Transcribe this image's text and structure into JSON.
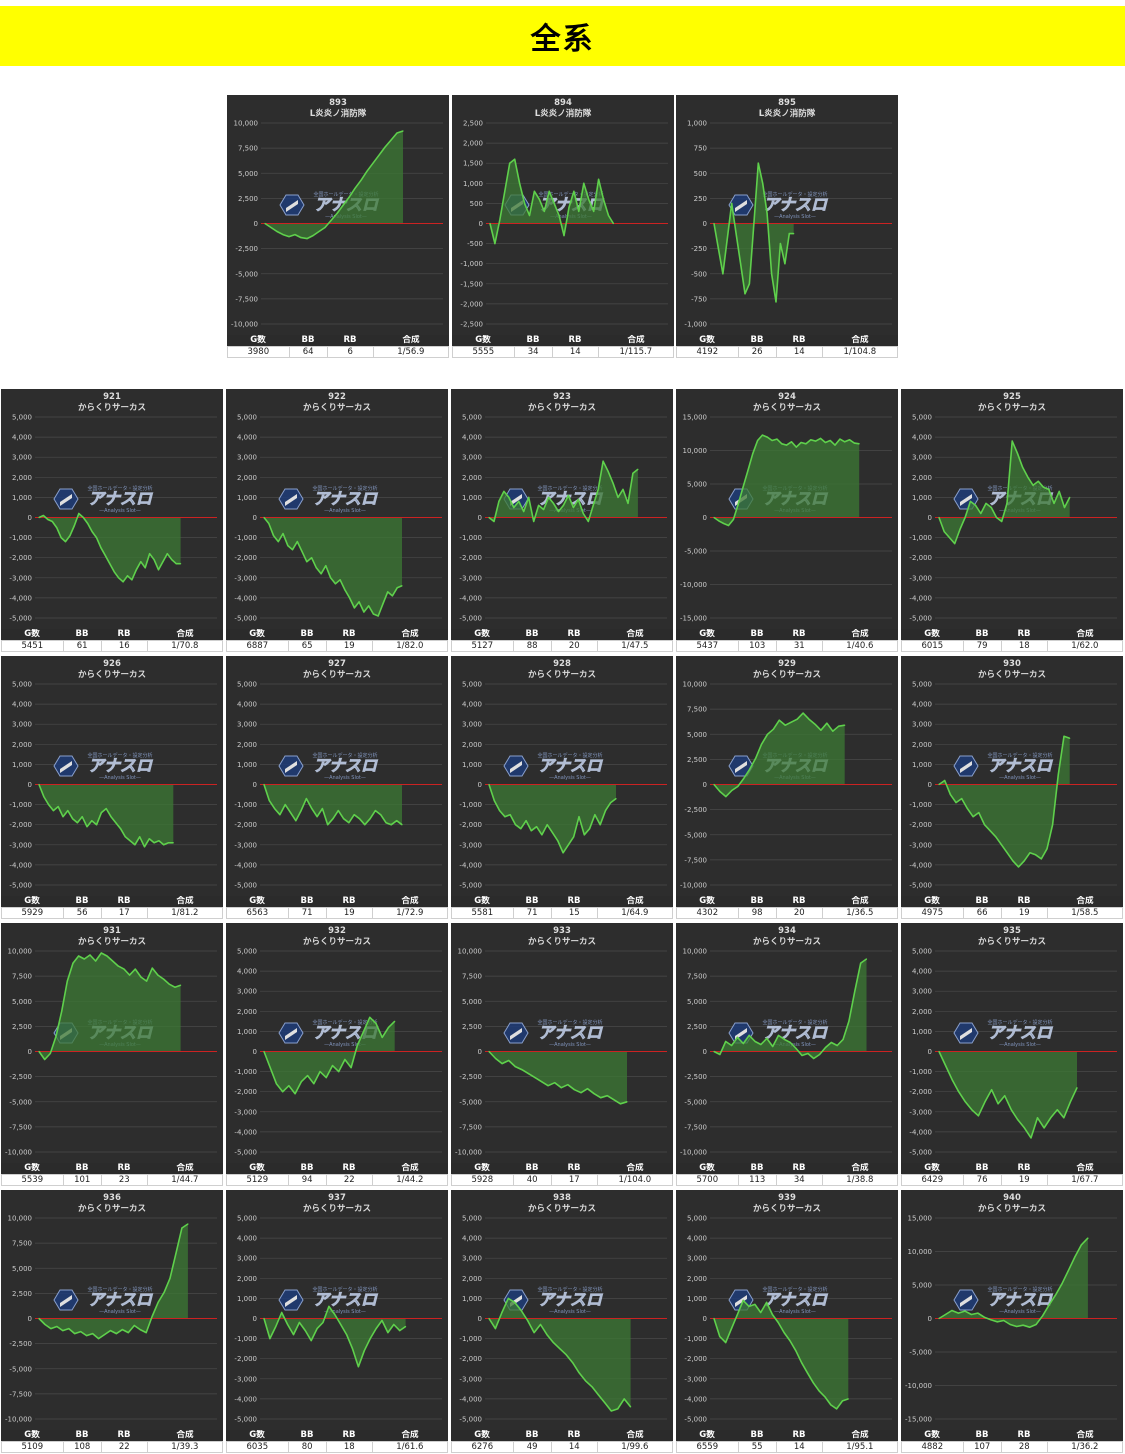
{
  "header": {
    "title": "全系"
  },
  "stat_labels": {
    "games": "G数",
    "bb": "BB",
    "rb": "RB",
    "ratio": "合成"
  },
  "watermark": {
    "main": "アナスロ",
    "sub": "—Analysis Slot—",
    "top": "全国ホールデータ・設定分析"
  },
  "colors": {
    "bg": "#2d2d2d",
    "line": "#5fd04c",
    "fill": "#3c7a34",
    "zero": "#cc2222",
    "banner": "#ffff00"
  },
  "chart_data": [
    {
      "type": "area",
      "id": "893",
      "machine": "L炎炎ノ消防隊",
      "ylim": [
        -10000,
        10000
      ],
      "yticks": [
        10000,
        7500,
        5000,
        2500,
        0,
        -2500,
        -5000,
        -7500,
        -10000
      ],
      "x_end": 0.78,
      "values": [
        0,
        -400,
        -800,
        -1100,
        -1300,
        -1100,
        -1400,
        -1500,
        -1200,
        -800,
        -400,
        300,
        1000,
        1800,
        2600,
        3500,
        4300,
        5200,
        6000,
        6800,
        7600,
        8300,
        9000,
        9200
      ],
      "stats": {
        "games": "3980",
        "bb": "64",
        "rb": "6",
        "ratio": "1/56.9"
      }
    },
    {
      "type": "area",
      "id": "894",
      "machine": "L炎炎ノ消防隊",
      "ylim": [
        -2500,
        2500
      ],
      "yticks": [
        2500,
        2000,
        1500,
        1000,
        500,
        0,
        -500,
        -1000,
        -1500,
        -2000,
        -2500
      ],
      "x_end": 0.7,
      "values": [
        0,
        -500,
        100,
        800,
        1500,
        1600,
        1000,
        500,
        200,
        800,
        600,
        300,
        800,
        500,
        200,
        -300,
        400,
        800,
        300,
        1000,
        600,
        300,
        1100,
        600,
        200,
        0
      ],
      "stats": {
        "games": "5555",
        "bb": "34",
        "rb": "14",
        "ratio": "1/115.7"
      }
    },
    {
      "type": "area",
      "id": "895",
      "machine": "L炎炎ノ消防隊",
      "ylim": [
        -1000,
        1000
      ],
      "yticks": [
        1000,
        750,
        500,
        250,
        0,
        -250,
        -500,
        -750,
        -1000
      ],
      "x_end": 0.46,
      "values": [
        0,
        -250,
        -500,
        -150,
        200,
        -100,
        -400,
        -700,
        -600,
        0,
        600,
        400,
        100,
        -500,
        -780,
        -200,
        -400,
        -100,
        -100
      ],
      "stats": {
        "games": "4192",
        "bb": "26",
        "rb": "14",
        "ratio": "1/104.8"
      }
    },
    {
      "type": "area",
      "id": "921",
      "machine": "からくりサーカス",
      "ylim": [
        -5000,
        5000
      ],
      "yticks": [
        5000,
        4000,
        3000,
        2000,
        1000,
        0,
        -1000,
        -2000,
        -3000,
        -4000,
        -5000
      ],
      "x_end": 0.8,
      "values": [
        0,
        100,
        -100,
        -200,
        -500,
        -1000,
        -1200,
        -900,
        -400,
        200,
        0,
        -300,
        -700,
        -1000,
        -1500,
        -1900,
        -2300,
        -2700,
        -3000,
        -3200,
        -2900,
        -3100,
        -2600,
        -2200,
        -2500,
        -1800,
        -2100,
        -2600,
        -2200,
        -1800,
        -2100,
        -2300,
        -2300
      ],
      "stats": {
        "games": "5451",
        "bb": "61",
        "rb": "16",
        "ratio": "1/70.8"
      }
    },
    {
      "type": "area",
      "id": "922",
      "machine": "からくりサーカス",
      "ylim": [
        -5000,
        5000
      ],
      "yticks": [
        5000,
        4000,
        3000,
        2000,
        1000,
        0,
        -1000,
        -2000,
        -3000,
        -4000,
        -5000
      ],
      "x_end": 0.78,
      "values": [
        0,
        -300,
        -900,
        -1200,
        -800,
        -1400,
        -1600,
        -1200,
        -1700,
        -2200,
        -2000,
        -2500,
        -2800,
        -2400,
        -3000,
        -3300,
        -3100,
        -3600,
        -4000,
        -4500,
        -4200,
        -4700,
        -4400,
        -4800,
        -4900,
        -4300,
        -3700,
        -3900,
        -3500,
        -3400
      ],
      "stats": {
        "games": "6887",
        "bb": "65",
        "rb": "19",
        "ratio": "1/82.0"
      }
    },
    {
      "type": "area",
      "id": "923",
      "machine": "からくりサーカス",
      "ylim": [
        -5000,
        5000
      ],
      "yticks": [
        5000,
        4000,
        3000,
        2000,
        1000,
        0,
        -1000,
        -2000,
        -3000,
        -4000,
        -5000
      ],
      "x_end": 0.84,
      "values": [
        0,
        -200,
        800,
        1300,
        1000,
        500,
        800,
        300,
        1000,
        -200,
        600,
        400,
        1000,
        700,
        300,
        600,
        1100,
        500,
        900,
        200,
        -200,
        600,
        1400,
        2800,
        2300,
        1700,
        1000,
        1400,
        700,
        2200,
        2400
      ],
      "stats": {
        "games": "5127",
        "bb": "88",
        "rb": "20",
        "ratio": "1/47.5"
      }
    },
    {
      "type": "area",
      "id": "924",
      "machine": "からくりサーカス",
      "ylim": [
        -15000,
        15000
      ],
      "yticks": [
        15000,
        10000,
        5000,
        0,
        -5000,
        -10000,
        -15000
      ],
      "x_end": 0.82,
      "values": [
        0,
        -500,
        -900,
        -1200,
        -300,
        2000,
        4500,
        7000,
        9500,
        11500,
        12300,
        12000,
        11500,
        11700,
        11000,
        10800,
        11300,
        10500,
        11200,
        11000,
        11600,
        11400,
        11800,
        11200,
        11500,
        10800,
        11700,
        11300,
        11600,
        11100,
        11000
      ],
      "stats": {
        "games": "5437",
        "bb": "103",
        "rb": "31",
        "ratio": "1/40.6"
      }
    },
    {
      "type": "area",
      "id": "925",
      "machine": "からくりサーカス",
      "ylim": [
        -5000,
        5000
      ],
      "yticks": [
        5000,
        4000,
        3000,
        2000,
        1000,
        0,
        -1000,
        -2000,
        -3000,
        -4000,
        -5000
      ],
      "x_end": 0.74,
      "values": [
        0,
        -700,
        -1000,
        -1300,
        -600,
        0,
        800,
        600,
        200,
        700,
        500,
        0,
        -200,
        700,
        3800,
        3200,
        2500,
        2000,
        1600,
        1800,
        1500,
        1400,
        700,
        1300,
        500,
        1000
      ],
      "stats": {
        "games": "6015",
        "bb": "79",
        "rb": "18",
        "ratio": "1/62.0"
      }
    },
    {
      "type": "area",
      "id": "926",
      "machine": "からくりサーカス",
      "ylim": [
        -5000,
        5000
      ],
      "yticks": [
        5000,
        4000,
        3000,
        2000,
        1000,
        0,
        -1000,
        -2000,
        -3000,
        -4000,
        -5000
      ],
      "x_end": 0.76,
      "values": [
        0,
        -600,
        -1000,
        -1300,
        -1100,
        -1600,
        -1300,
        -1700,
        -1900,
        -1600,
        -2100,
        -1800,
        -2000,
        -1400,
        -1200,
        -1600,
        -1900,
        -2200,
        -2600,
        -2800,
        -3000,
        -2600,
        -3100,
        -2700,
        -2900,
        -2800,
        -3000,
        -2900,
        -2900
      ],
      "stats": {
        "games": "5929",
        "bb": "56",
        "rb": "17",
        "ratio": "1/81.2"
      }
    },
    {
      "type": "area",
      "id": "927",
      "machine": "からくりサーカス",
      "ylim": [
        -5000,
        5000
      ],
      "yticks": [
        5000,
        4000,
        3000,
        2000,
        1000,
        0,
        -1000,
        -2000,
        -3000,
        -4000,
        -5000
      ],
      "x_end": 0.78,
      "values": [
        0,
        -800,
        -1200,
        -1500,
        -1000,
        -1400,
        -1800,
        -1300,
        -700,
        -1200,
        -1600,
        -1200,
        -2000,
        -1700,
        -1300,
        -1700,
        -1900,
        -1500,
        -1700,
        -2000,
        -1700,
        -1300,
        -1500,
        -1900,
        -2000,
        -1800,
        -2000
      ],
      "stats": {
        "games": "6563",
        "bb": "71",
        "rb": "19",
        "ratio": "1/72.9"
      }
    },
    {
      "type": "area",
      "id": "928",
      "machine": "からくりサーカス",
      "ylim": [
        -5000,
        5000
      ],
      "yticks": [
        5000,
        4000,
        3000,
        2000,
        1000,
        0,
        -1000,
        -2000,
        -3000,
        -4000,
        -5000
      ],
      "x_end": 0.72,
      "values": [
        0,
        -800,
        -1300,
        -1600,
        -1500,
        -2000,
        -2200,
        -1800,
        -2300,
        -2100,
        -2500,
        -2000,
        -2400,
        -2800,
        -3400,
        -3000,
        -2600,
        -1600,
        -2500,
        -2200,
        -1500,
        -2000,
        -1300,
        -900,
        -700
      ],
      "stats": {
        "games": "5581",
        "bb": "71",
        "rb": "15",
        "ratio": "1/64.9"
      }
    },
    {
      "type": "area",
      "id": "929",
      "machine": "からくりサーカス",
      "ylim": [
        -10000,
        10000
      ],
      "yticks": [
        10000,
        7500,
        5000,
        2500,
        0,
        -2500,
        -5000,
        -7500,
        -10000
      ],
      "x_end": 0.74,
      "values": [
        0,
        -700,
        -1200,
        -600,
        -200,
        600,
        1500,
        2600,
        4000,
        5000,
        5500,
        6400,
        5900,
        6200,
        6500,
        7100,
        6500,
        6000,
        5400,
        6100,
        5300,
        5800,
        5900
      ],
      "stats": {
        "games": "4302",
        "bb": "98",
        "rb": "20",
        "ratio": "1/36.5"
      }
    },
    {
      "type": "area",
      "id": "930",
      "machine": "からくりサーカス",
      "ylim": [
        -5000,
        5000
      ],
      "yticks": [
        5000,
        4000,
        3000,
        2000,
        1000,
        0,
        -1000,
        -2000,
        -3000,
        -4000,
        -5000
      ],
      "x_end": 0.74,
      "values": [
        0,
        200,
        -500,
        -900,
        -700,
        -1200,
        -1600,
        -1400,
        -2000,
        -2300,
        -2600,
        -3000,
        -3400,
        -3800,
        -4100,
        -3800,
        -3400,
        -3500,
        -3700,
        -3200,
        -2000,
        500,
        2400,
        2300
      ],
      "stats": {
        "games": "4975",
        "bb": "66",
        "rb": "19",
        "ratio": "1/58.5"
      }
    },
    {
      "type": "area",
      "id": "931",
      "machine": "からくりサーカス",
      "ylim": [
        -10000,
        10000
      ],
      "yticks": [
        10000,
        7500,
        5000,
        2500,
        0,
        -2500,
        -5000,
        -7500,
        -10000
      ],
      "x_end": 0.8,
      "values": [
        0,
        -800,
        -200,
        1500,
        4000,
        7000,
        8800,
        9500,
        9200,
        9600,
        9000,
        9800,
        9500,
        9000,
        8500,
        8200,
        7600,
        8200,
        7400,
        7000,
        8300,
        7600,
        7200,
        6700,
        6400,
        6600
      ],
      "stats": {
        "games": "5539",
        "bb": "101",
        "rb": "23",
        "ratio": "1/44.7"
      }
    },
    {
      "type": "area",
      "id": "932",
      "machine": "からくりサーカス",
      "ylim": [
        -5000,
        5000
      ],
      "yticks": [
        5000,
        4000,
        3000,
        2000,
        1000,
        0,
        -1000,
        -2000,
        -3000,
        -4000,
        -5000
      ],
      "x_end": 0.74,
      "values": [
        0,
        -800,
        -1600,
        -2000,
        -1700,
        -2100,
        -1500,
        -1200,
        -1600,
        -1000,
        -1300,
        -700,
        -1000,
        -400,
        -800,
        300,
        1000,
        1700,
        1400,
        700,
        1200,
        1500
      ],
      "stats": {
        "games": "5129",
        "bb": "94",
        "rb": "22",
        "ratio": "1/44.2"
      }
    },
    {
      "type": "area",
      "id": "933",
      "machine": "からくりサーカス",
      "ylim": [
        -10000,
        10000
      ],
      "yticks": [
        10000,
        7500,
        5000,
        2500,
        0,
        -2500,
        -5000,
        -7500,
        -10000
      ],
      "x_end": 0.78,
      "values": [
        0,
        -700,
        -1200,
        -900,
        -1500,
        -1800,
        -2200,
        -2600,
        -3000,
        -3400,
        -3100,
        -3600,
        -3300,
        -3800,
        -4100,
        -3700,
        -4200,
        -4600,
        -4400,
        -4800,
        -5200,
        -5000
      ],
      "stats": {
        "games": "5928",
        "bb": "40",
        "rb": "17",
        "ratio": "1/104.0"
      }
    },
    {
      "type": "area",
      "id": "934",
      "machine": "からくりサーカス",
      "ylim": [
        -10000,
        10000
      ],
      "yticks": [
        10000,
        7500,
        5000,
        2500,
        0,
        -2500,
        -5000,
        -7500,
        -10000
      ],
      "x_end": 0.86,
      "values": [
        0,
        -300,
        1000,
        600,
        1400,
        800,
        1600,
        1000,
        700,
        1300,
        500,
        1600,
        1200,
        900,
        300,
        -400,
        -200,
        -700,
        -300,
        400,
        900,
        600,
        1200,
        3000,
        6000,
        8800,
        9200
      ],
      "stats": {
        "games": "5700",
        "bb": "113",
        "rb": "34",
        "ratio": "1/38.8"
      }
    },
    {
      "type": "area",
      "id": "935",
      "machine": "からくりサーカス",
      "ylim": [
        -5000,
        5000
      ],
      "yticks": [
        5000,
        4000,
        3000,
        2000,
        1000,
        0,
        -1000,
        -2000,
        -3000,
        -4000,
        -5000
      ],
      "x_end": 0.78,
      "values": [
        0,
        -700,
        -1400,
        -2000,
        -2500,
        -2900,
        -3200,
        -2500,
        -1900,
        -2600,
        -2200,
        -2900,
        -3400,
        -3800,
        -4300,
        -3300,
        -3800,
        -3300,
        -2900,
        -3300,
        -2500,
        -1800
      ],
      "stats": {
        "games": "6429",
        "bb": "76",
        "rb": "19",
        "ratio": "1/67.7"
      }
    },
    {
      "type": "area",
      "id": "936",
      "machine": "からくりサーカス",
      "ylim": [
        -10000,
        10000
      ],
      "yticks": [
        10000,
        7500,
        5000,
        2500,
        0,
        -2500,
        -5000,
        -7500,
        -10000
      ],
      "x_end": 0.84,
      "values": [
        0,
        -600,
        -1000,
        -800,
        -1200,
        -1000,
        -1500,
        -1300,
        -1700,
        -1500,
        -2000,
        -1600,
        -1200,
        -1500,
        -1100,
        -1400,
        -700,
        -1100,
        -1400,
        200,
        1600,
        2600,
        4000,
        6500,
        9000,
        9400
      ],
      "stats": {
        "games": "5109",
        "bb": "108",
        "rb": "22",
        "ratio": "1/39.3"
      }
    },
    {
      "type": "area",
      "id": "937",
      "machine": "からくりサーカス",
      "ylim": [
        -5000,
        5000
      ],
      "yticks": [
        5000,
        4000,
        3000,
        2000,
        1000,
        0,
        -1000,
        -2000,
        -3000,
        -4000,
        -5000
      ],
      "x_end": 0.8,
      "values": [
        0,
        -1000,
        -400,
        300,
        -300,
        -800,
        -200,
        -600,
        -1100,
        -500,
        -200,
        600,
        200,
        -300,
        -800,
        -1500,
        -2400,
        -1600,
        -1000,
        -500,
        -100,
        -700,
        -300,
        -600,
        -400
      ],
      "stats": {
        "games": "6035",
        "bb": "80",
        "rb": "18",
        "ratio": "1/61.6"
      }
    },
    {
      "type": "area",
      "id": "938",
      "machine": "からくりサーカス",
      "ylim": [
        -5000,
        5000
      ],
      "yticks": [
        5000,
        4000,
        3000,
        2000,
        1000,
        0,
        -1000,
        -2000,
        -3000,
        -4000,
        -5000
      ],
      "x_end": 0.8,
      "values": [
        0,
        -500,
        300,
        1000,
        800,
        400,
        -100,
        -700,
        -300,
        -800,
        -1200,
        -1500,
        -1800,
        -2200,
        -2700,
        -3100,
        -3400,
        -3800,
        -4200,
        -4600,
        -4500,
        -4000,
        -4400
      ],
      "stats": {
        "games": "6276",
        "bb": "49",
        "rb": "14",
        "ratio": "1/99.6"
      }
    },
    {
      "type": "area",
      "id": "939",
      "machine": "からくりサーカス",
      "ylim": [
        -5000,
        5000
      ],
      "yticks": [
        5000,
        4000,
        3000,
        2000,
        1000,
        0,
        -1000,
        -2000,
        -3000,
        -4000,
        -5000
      ],
      "x_end": 0.76,
      "values": [
        0,
        -900,
        -1200,
        -500,
        200,
        900,
        600,
        700,
        300,
        800,
        200,
        -200,
        -700,
        -1100,
        -1600,
        -2200,
        -2700,
        -3200,
        -3600,
        -3900,
        -4300,
        -4500,
        -4100,
        -4000
      ],
      "stats": {
        "games": "6559",
        "bb": "55",
        "rb": "14",
        "ratio": "1/95.1"
      }
    },
    {
      "type": "area",
      "id": "940",
      "machine": "からくりサーカス",
      "ylim": [
        -15000,
        15000
      ],
      "yticks": [
        15000,
        10000,
        5000,
        0,
        -5000,
        -10000,
        -15000
      ],
      "x_end": 0.84,
      "values": [
        0,
        600,
        1200,
        800,
        1100,
        600,
        800,
        200,
        -200,
        -500,
        -300,
        -900,
        -1200,
        -1000,
        -1300,
        -900,
        400,
        2000,
        3500,
        5200,
        7200,
        9200,
        11000,
        12000
      ],
      "stats": {
        "games": "4882",
        "bb": "107",
        "rb": "28",
        "ratio": "1/36.2"
      }
    }
  ]
}
